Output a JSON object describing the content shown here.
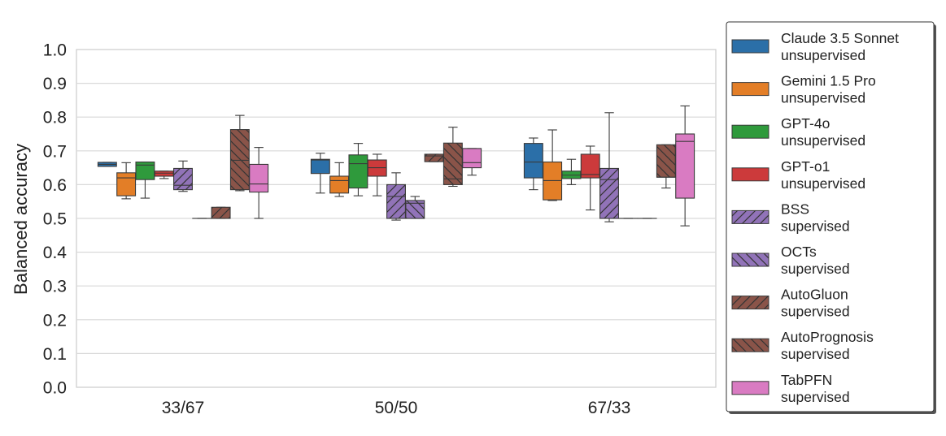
{
  "chart_data": {
    "type": "boxplot",
    "ylabel": "Balanced accuracy",
    "xlabel": "",
    "ylim": [
      0.0,
      1.0
    ],
    "yticks": [
      "0.0",
      "0.1",
      "0.2",
      "0.3",
      "0.4",
      "0.5",
      "0.6",
      "0.7",
      "0.8",
      "0.9",
      "1.0"
    ],
    "categories": [
      "33/67",
      "50/50",
      "67/33"
    ],
    "legend_position": "right",
    "series": [
      {
        "name": "Claude 3.5 Sonnet",
        "sub": "unsupervised",
        "color": "#2b6fa8",
        "hatch": "none",
        "boxes": [
          {
            "whislo": 0.654,
            "q1": 0.654,
            "med": 0.66,
            "q3": 0.666,
            "whishi": 0.666
          },
          {
            "whislo": 0.575,
            "q1": 0.633,
            "med": 0.673,
            "q3": 0.675,
            "whishi": 0.693
          },
          {
            "whislo": 0.585,
            "q1": 0.62,
            "med": 0.667,
            "q3": 0.722,
            "whishi": 0.738
          }
        ]
      },
      {
        "name": "Gemini 1.5 Pro",
        "sub": "unsupervised",
        "color": "#e37e27",
        "hatch": "none",
        "boxes": [
          {
            "whislo": 0.558,
            "q1": 0.567,
            "med": 0.62,
            "q3": 0.635,
            "whishi": 0.665
          },
          {
            "whislo": 0.565,
            "q1": 0.575,
            "med": 0.612,
            "q3": 0.625,
            "whishi": 0.665
          },
          {
            "whislo": 0.553,
            "q1": 0.555,
            "med": 0.612,
            "q3": 0.667,
            "whishi": 0.762
          }
        ]
      },
      {
        "name": "GPT-4o",
        "sub": "unsupervised",
        "color": "#2f9a3c",
        "hatch": "none",
        "boxes": [
          {
            "whislo": 0.56,
            "q1": 0.615,
            "med": 0.658,
            "q3": 0.667,
            "whishi": 0.667
          },
          {
            "whislo": 0.567,
            "q1": 0.59,
            "med": 0.662,
            "q3": 0.688,
            "whishi": 0.722
          },
          {
            "whislo": 0.6,
            "q1": 0.618,
            "med": 0.628,
            "q3": 0.64,
            "whishi": 0.675
          }
        ]
      },
      {
        "name": "GPT-o1",
        "sub": "unsupervised",
        "color": "#cc3a3b",
        "hatch": "none",
        "boxes": [
          {
            "whislo": 0.618,
            "q1": 0.625,
            "med": 0.634,
            "q3": 0.64,
            "whishi": 0.64
          },
          {
            "whislo": 0.567,
            "q1": 0.625,
            "med": 0.65,
            "q3": 0.673,
            "whishi": 0.69
          },
          {
            "whislo": 0.525,
            "q1": 0.62,
            "med": 0.63,
            "q3": 0.69,
            "whishi": 0.714
          }
        ]
      },
      {
        "name": "BSS",
        "sub": "supervised",
        "color": "#9173b8",
        "hatch": "forward",
        "boxes": [
          {
            "whislo": 0.58,
            "q1": 0.585,
            "med": 0.598,
            "q3": 0.648,
            "whishi": 0.67
          },
          {
            "whislo": 0.495,
            "q1": 0.5,
            "med": 0.565,
            "q3": 0.6,
            "whishi": 0.635
          },
          {
            "whislo": 0.49,
            "q1": 0.5,
            "med": 0.615,
            "q3": 0.648,
            "whishi": 0.813
          }
        ]
      },
      {
        "name": "OCTs",
        "sub": "supervised",
        "color": "#9173b8",
        "hatch": "back",
        "boxes": [
          {
            "whislo": 0.5,
            "q1": 0.5,
            "med": 0.5,
            "q3": 0.5,
            "whishi": 0.5
          },
          {
            "whislo": 0.5,
            "q1": 0.5,
            "med": 0.545,
            "q3": 0.553,
            "whishi": 0.565
          },
          {
            "whislo": 0.5,
            "q1": 0.5,
            "med": 0.5,
            "q3": 0.5,
            "whishi": 0.5
          }
        ]
      },
      {
        "name": "AutoGluon",
        "sub": "supervised",
        "color": "#8a5449",
        "hatch": "forward",
        "boxes": [
          {
            "whislo": 0.5,
            "q1": 0.5,
            "med": 0.5,
            "q3": 0.533,
            "whishi": 0.533
          },
          {
            "whislo": 0.668,
            "q1": 0.668,
            "med": 0.685,
            "q3": 0.69,
            "whishi": 0.69
          },
          {
            "whislo": 0.5,
            "q1": 0.5,
            "med": 0.5,
            "q3": 0.5,
            "whishi": 0.5
          }
        ]
      },
      {
        "name": "AutoPrognosis",
        "sub": "supervised",
        "color": "#8a5449",
        "hatch": "back",
        "boxes": [
          {
            "whislo": 0.582,
            "q1": 0.585,
            "med": 0.672,
            "q3": 0.763,
            "whishi": 0.805
          },
          {
            "whislo": 0.595,
            "q1": 0.6,
            "med": 0.617,
            "q3": 0.723,
            "whishi": 0.77
          },
          {
            "whislo": 0.59,
            "q1": 0.622,
            "med": 0.622,
            "q3": 0.718,
            "whishi": 0.718
          }
        ]
      },
      {
        "name": "TabPFN",
        "sub": "supervised",
        "color": "#d97bc2",
        "hatch": "none",
        "boxes": [
          {
            "whislo": 0.5,
            "q1": 0.578,
            "med": 0.602,
            "q3": 0.66,
            "whishi": 0.71
          },
          {
            "whislo": 0.628,
            "q1": 0.65,
            "med": 0.665,
            "q3": 0.707,
            "whishi": 0.707
          },
          {
            "whislo": 0.478,
            "q1": 0.56,
            "med": 0.728,
            "q3": 0.75,
            "whishi": 0.833
          }
        ]
      }
    ]
  }
}
